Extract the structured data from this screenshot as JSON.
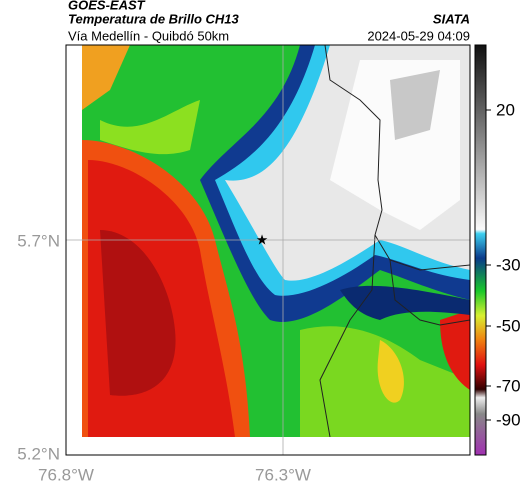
{
  "header": {
    "source": "GOES-EAST",
    "title": "Temperatura de Brillo CH13",
    "subtitle": "Vía Medellín - Quibdó 50km",
    "brand": "SIATA",
    "timestamp": "2024-05-29 04:09"
  },
  "axes": {
    "lat_labels": [
      "5.7°N",
      "5.2°N"
    ],
    "lon_labels": [
      "76.8°W",
      "76.3°W"
    ]
  },
  "colorbar": {
    "tick_labels": [
      "20",
      "-30",
      "-50",
      "-70",
      "-90"
    ]
  }
}
